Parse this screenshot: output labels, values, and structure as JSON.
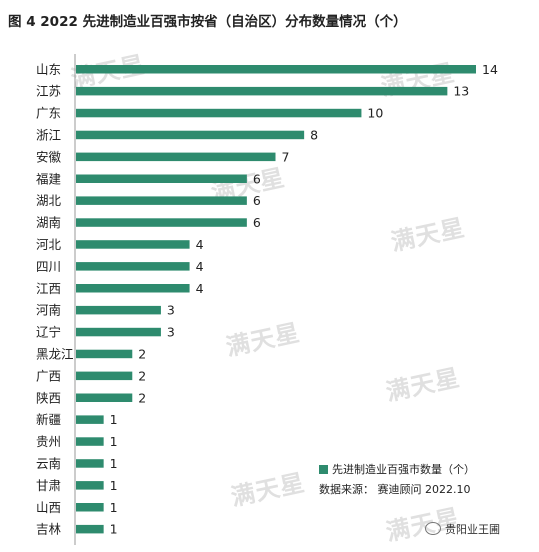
{
  "title": "图 4 2022 先进制造业百强市按省（自治区）分布数量情况（个）",
  "watermark": "满天星",
  "legend_label": "先进制造业百强市数量（个）",
  "source": "数据来源：  赛迪顾问  2022.10",
  "brand": "贵阳业王圃",
  "colors": {
    "bar": "#2e8b6e",
    "axis": "#999999",
    "text": "#222222"
  },
  "chart_data": {
    "type": "bar",
    "orientation": "horizontal",
    "categories": [
      "山东",
      "江苏",
      "广东",
      "浙江",
      "安徽",
      "福建",
      "湖北",
      "湖南",
      "河北",
      "四川",
      "江西",
      "河南",
      "辽宁",
      "黑龙江",
      "广西",
      "陕西",
      "新疆",
      "贵州",
      "云南",
      "甘肃",
      "山西",
      "吉林"
    ],
    "series": [
      {
        "name": "先进制造业百强市数量（个）",
        "values": [
          14,
          13,
          10,
          8,
          7,
          6,
          6,
          6,
          4,
          4,
          4,
          3,
          3,
          2,
          2,
          2,
          1,
          1,
          1,
          1,
          1,
          1
        ]
      }
    ],
    "xlim": [
      0,
      14
    ],
    "grid": false,
    "legend_position": "bottom-right"
  }
}
